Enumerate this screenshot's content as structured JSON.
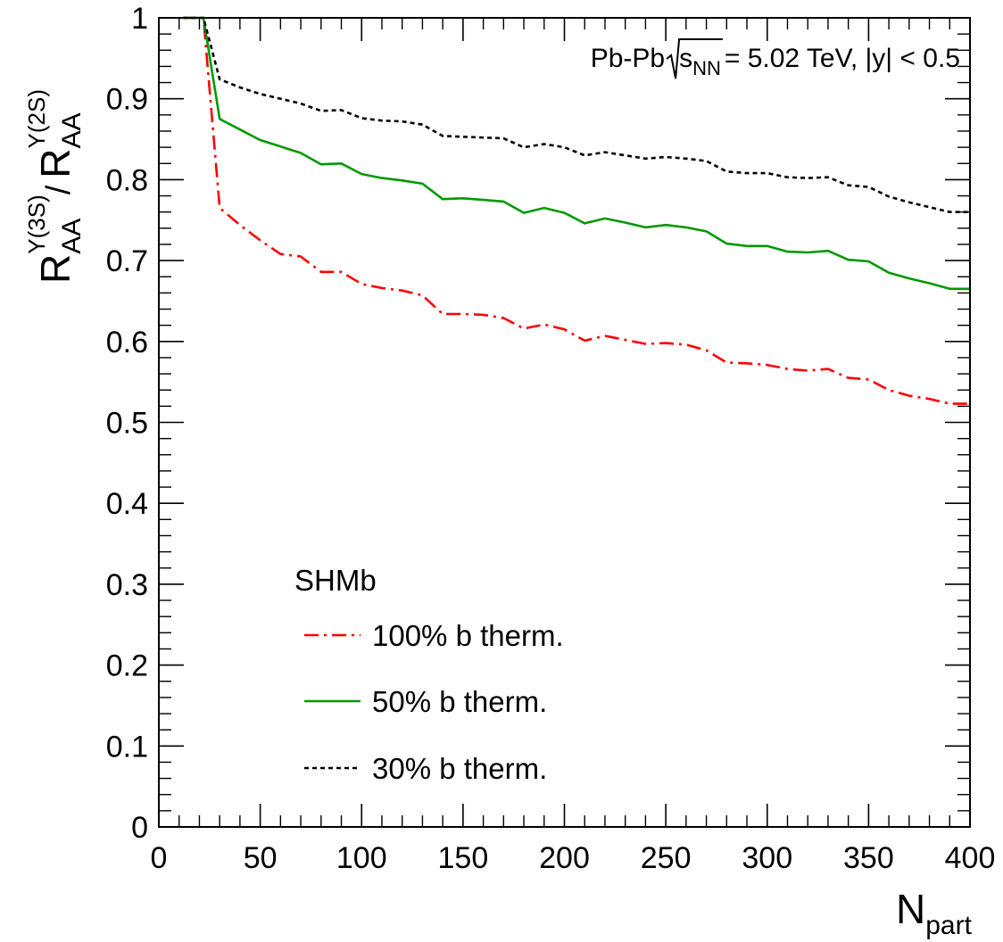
{
  "chart_data": {
    "type": "line",
    "title": "",
    "annotation": {
      "prefix": "Pb-Pb ",
      "radicand": "s",
      "radicand_sub": "NN",
      "suffix": " = 5.02 TeV, |y| < 0.5"
    },
    "xlabel": {
      "main": "N",
      "sub": "part"
    },
    "ylabel": {
      "num_main": "R",
      "num_sub": "AA",
      "num_sup": "Υ(3S)",
      "slash": "/",
      "den_main": "R",
      "den_sub": "AA",
      "den_sup": "Υ(2S)"
    },
    "xlim": [
      0,
      400
    ],
    "ylim": [
      0,
      1
    ],
    "x_ticks": [
      0,
      50,
      100,
      150,
      200,
      250,
      300,
      350,
      400
    ],
    "y_ticks": [
      0,
      0.1,
      0.2,
      0.3,
      0.4,
      0.5,
      0.6,
      0.7,
      0.8,
      0.9,
      1
    ],
    "x_tick_labels": [
      "0",
      "50",
      "100",
      "150",
      "200",
      "250",
      "300",
      "350",
      "400"
    ],
    "y_tick_labels": [
      "0",
      "0.1",
      "0.2",
      "0.3",
      "0.4",
      "0.5",
      "0.6",
      "0.7",
      "0.8",
      "0.9",
      "1"
    ],
    "grid": false,
    "legend": {
      "header": "SHMb",
      "position": "lower-left"
    },
    "series": [
      {
        "name": "100% b therm.",
        "color": "#ff0000",
        "dash": "dashdot",
        "x": [
          12,
          22,
          30,
          40,
          50,
          60,
          70,
          80,
          90,
          100,
          110,
          120,
          130,
          140,
          150,
          160,
          170,
          180,
          190,
          200,
          210,
          220,
          230,
          240,
          250,
          260,
          270,
          280,
          290,
          300,
          310,
          320,
          330,
          340,
          350,
          360,
          370,
          380,
          390,
          400
        ],
        "y": [
          1.0,
          1.0,
          0.765,
          0.744,
          0.725,
          0.708,
          0.705,
          0.686,
          0.686,
          0.671,
          0.666,
          0.663,
          0.657,
          0.634,
          0.634,
          0.633,
          0.629,
          0.616,
          0.621,
          0.615,
          0.601,
          0.607,
          0.602,
          0.597,
          0.598,
          0.596,
          0.589,
          0.574,
          0.573,
          0.571,
          0.566,
          0.564,
          0.566,
          0.555,
          0.553,
          0.54,
          0.533,
          0.529,
          0.523,
          0.523
        ]
      },
      {
        "name": "50% b therm.",
        "color": "#009900",
        "dash": "solid",
        "x": [
          12,
          22,
          30,
          40,
          50,
          60,
          70,
          80,
          90,
          100,
          110,
          120,
          130,
          140,
          150,
          160,
          170,
          180,
          190,
          200,
          210,
          220,
          230,
          240,
          250,
          260,
          270,
          280,
          290,
          300,
          310,
          320,
          330,
          340,
          350,
          360,
          370,
          380,
          390,
          400
        ],
        "y": [
          1.0,
          1.0,
          0.875,
          0.862,
          0.849,
          0.841,
          0.833,
          0.819,
          0.82,
          0.807,
          0.802,
          0.799,
          0.795,
          0.776,
          0.777,
          0.775,
          0.773,
          0.759,
          0.765,
          0.759,
          0.746,
          0.752,
          0.747,
          0.741,
          0.744,
          0.741,
          0.736,
          0.721,
          0.718,
          0.718,
          0.711,
          0.71,
          0.712,
          0.701,
          0.699,
          0.685,
          0.678,
          0.672,
          0.665,
          0.665
        ]
      },
      {
        "name": "30% b therm.",
        "color": "#000000",
        "dash": "dotted",
        "x": [
          12,
          22,
          30,
          40,
          50,
          60,
          70,
          80,
          90,
          100,
          110,
          120,
          130,
          140,
          150,
          160,
          170,
          180,
          190,
          200,
          210,
          220,
          230,
          240,
          250,
          260,
          270,
          280,
          290,
          300,
          310,
          320,
          330,
          340,
          350,
          360,
          370,
          380,
          390,
          400
        ],
        "y": [
          1.0,
          1.0,
          0.924,
          0.914,
          0.906,
          0.9,
          0.894,
          0.885,
          0.886,
          0.876,
          0.873,
          0.872,
          0.868,
          0.854,
          0.853,
          0.852,
          0.851,
          0.84,
          0.844,
          0.84,
          0.83,
          0.834,
          0.83,
          0.826,
          0.828,
          0.826,
          0.823,
          0.81,
          0.808,
          0.808,
          0.803,
          0.802,
          0.803,
          0.793,
          0.791,
          0.779,
          0.772,
          0.766,
          0.76,
          0.76
        ]
      }
    ]
  }
}
